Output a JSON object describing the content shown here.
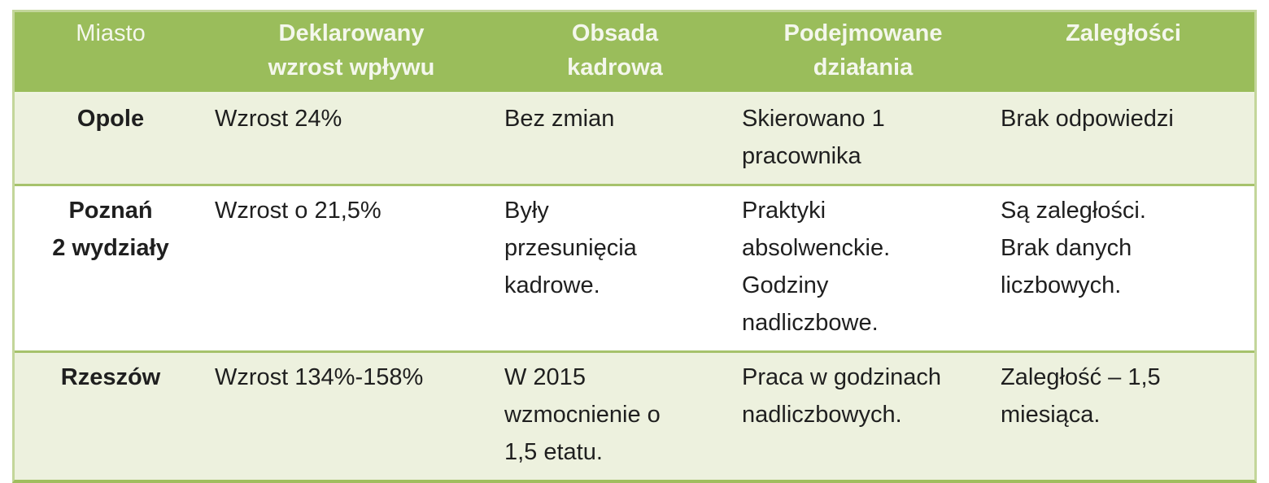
{
  "table": {
    "header": {
      "miasto": "Miasto",
      "deklarowany_wzrost": "Deklarowany\nwzrost wpływu",
      "obsada_kadrowa": "Obsada\nkadrowa",
      "podejmowane_dzialania": "Podejmowane\ndziałania",
      "zaleglosci": "Zaległości"
    },
    "rows": [
      {
        "miasto": "Opole",
        "deklarowany_wzrost": "Wzrost 24%",
        "obsada_kadrowa": "Bez zmian",
        "podejmowane_dzialania": "Skierowano 1\npracownika",
        "zaleglosci": "Brak odpowiedzi"
      },
      {
        "miasto": "Poznań\n2 wydziały",
        "deklarowany_wzrost": "Wzrost o 21,5%",
        "obsada_kadrowa": "Były\nprzesunięcia\nkadrowe.",
        "podejmowane_dzialania": "Praktyki\nabsolwenckie.\nGodziny\nnadliczbowe.",
        "zaleglosci": "Są zaległości.\nBrak danych\nliczbowych."
      },
      {
        "miasto": "Rzeszów",
        "deklarowany_wzrost": "Wzrost 134%-158%",
        "obsada_kadrowa": "W 2015\nwzmocnienie o\n1,5 etatu.",
        "podejmowane_dzialania": "Praca w godzinach\nnadliczbowych.",
        "zaleglosci": "Zaległość – 1,5\nmiesiąca."
      }
    ]
  },
  "colors": {
    "page_bg": "#ffffff",
    "header_bg": "#9abd5b",
    "header_text": "#f4f7ec",
    "row_alt_bg": "#edf1de",
    "row_bg": "#ffffff",
    "body_text": "#1f1f1f",
    "outer_border": "#c3d69a",
    "row_border": "#a6c26c",
    "header_border": "#eef3e0",
    "bottom_border": "#a0bd5e"
  }
}
